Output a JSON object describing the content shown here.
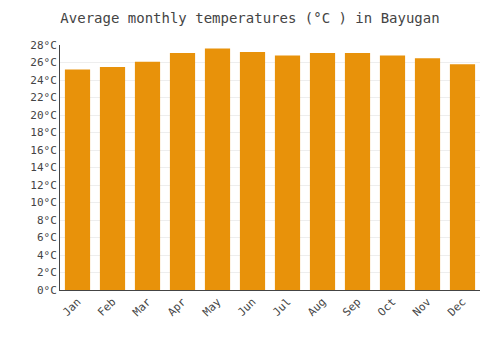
{
  "chart_data": {
    "type": "bar",
    "title": "Average monthly temperatures (°C ) in Bayugan",
    "categories": [
      "Jan",
      "Feb",
      "Mar",
      "Apr",
      "May",
      "Jun",
      "Jul",
      "Aug",
      "Sep",
      "Oct",
      "Nov",
      "Dec"
    ],
    "values": [
      25.2,
      25.5,
      26.1,
      27.1,
      27.6,
      27.2,
      26.8,
      27.1,
      27.1,
      26.8,
      26.5,
      25.8
    ],
    "color": "#E8920A",
    "ylim": [
      0,
      28
    ],
    "yticks": [
      {
        "value": 0,
        "label": "0°C"
      },
      {
        "value": 2,
        "label": "2°C"
      },
      {
        "value": 4,
        "label": "4°C"
      },
      {
        "value": 6,
        "label": "6°C"
      },
      {
        "value": 8,
        "label": "8°C"
      },
      {
        "value": 10,
        "label": "10°C"
      },
      {
        "value": 12,
        "label": "12°C"
      },
      {
        "value": 14,
        "label": "14°C"
      },
      {
        "value": 16,
        "label": "16°C"
      },
      {
        "value": 18,
        "label": "18°C"
      },
      {
        "value": 20,
        "label": "20°C"
      },
      {
        "value": 22,
        "label": "22°C"
      },
      {
        "value": 24,
        "label": "24°C"
      },
      {
        "value": 26,
        "label": "26°C"
      },
      {
        "value": 28,
        "label": "28°C"
      }
    ],
    "grid": true
  }
}
